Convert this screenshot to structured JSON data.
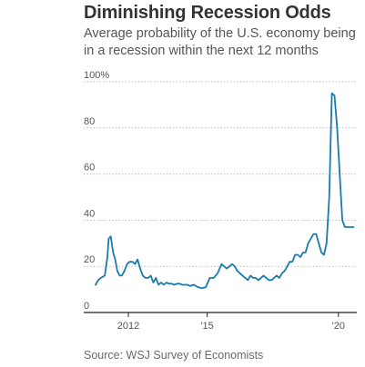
{
  "chart_data": {
    "type": "line",
    "title": "Diminishing Recession Odds",
    "subtitle": "Average probability of the U.S. economy being in a recession within the next 12 months",
    "source": "Source: WSJ Survey of Economists",
    "xlabel": "",
    "ylabel": "",
    "ylim": [
      0,
      100
    ],
    "xlim": [
      2010.3,
      2020.7
    ],
    "yticks": [
      {
        "value": 0,
        "label": "0"
      },
      {
        "value": 20,
        "label": "20"
      },
      {
        "value": 40,
        "label": "40"
      },
      {
        "value": 60,
        "label": "60"
      },
      {
        "value": 80,
        "label": "80"
      },
      {
        "value": 100,
        "label": "100%"
      }
    ],
    "xticks": [
      {
        "value": 2012,
        "label": "2012"
      },
      {
        "value": 2015,
        "label": "'15"
      },
      {
        "value": 2020,
        "label": "'20"
      }
    ],
    "grid": true,
    "colors": {
      "line": "#1a7bab",
      "grid": "#bbbbbb",
      "axis": "#222222"
    },
    "series": [
      {
        "values_x": [
          2010.75,
          2010.85,
          2010.95,
          2011.1,
          2011.2,
          2011.25,
          2011.33,
          2011.42,
          2011.5,
          2011.58,
          2011.67,
          2011.75,
          2011.85,
          2011.95,
          2012.05,
          2012.15,
          2012.25,
          2012.35,
          2012.45,
          2012.55,
          2012.65,
          2012.75,
          2012.85,
          2012.95,
          2013.05,
          2013.15,
          2013.25,
          2013.35,
          2013.45,
          2013.55,
          2013.65,
          2013.75,
          2013.85,
          2013.95,
          2014.05,
          2014.15,
          2014.25,
          2014.35,
          2014.5,
          2014.65,
          2014.8,
          2014.95,
          2015.1,
          2015.25,
          2015.4,
          2015.55,
          2015.65,
          2015.75,
          2015.85,
          2015.95,
          2016.05,
          2016.15,
          2016.25,
          2016.35,
          2016.45,
          2016.55,
          2016.65,
          2016.75,
          2016.85,
          2016.95,
          2017.05,
          2017.15,
          2017.25,
          2017.35,
          2017.45,
          2017.55,
          2017.65,
          2017.75,
          2017.85,
          2017.95,
          2018.05,
          2018.15,
          2018.25,
          2018.35,
          2018.45,
          2018.55,
          2018.65,
          2018.75,
          2018.85,
          2018.95,
          2019.05,
          2019.15,
          2019.25,
          2019.35,
          2019.45,
          2019.55,
          2019.65,
          2019.75,
          2019.85,
          2019.95,
          2020.05,
          2020.15,
          2020.25,
          2020.33,
          2020.42,
          2020.5,
          2020.58
        ],
        "values_y": [
          12,
          14,
          15,
          16,
          24,
          32,
          33,
          26,
          23,
          18,
          16,
          16,
          18,
          21,
          22,
          22,
          21,
          23,
          19,
          16,
          15,
          15,
          16,
          13,
          15,
          12,
          13,
          12,
          13,
          12.5,
          12.5,
          12,
          12.5,
          12.5,
          12,
          12,
          12,
          11.5,
          12,
          11,
          10.5,
          11,
          15,
          15,
          17,
          21,
          20,
          19,
          20,
          21,
          20,
          18,
          17,
          16,
          15,
          14,
          16,
          15,
          15,
          14,
          15,
          16,
          15,
          14,
          14,
          15,
          16,
          15,
          17,
          18,
          20,
          22,
          22,
          25,
          25,
          24,
          26,
          26,
          30,
          32,
          34,
          34,
          30,
          26,
          25,
          30,
          50,
          95,
          94,
          80,
          60,
          40,
          37,
          37,
          37,
          37,
          37
        ]
      }
    ]
  }
}
